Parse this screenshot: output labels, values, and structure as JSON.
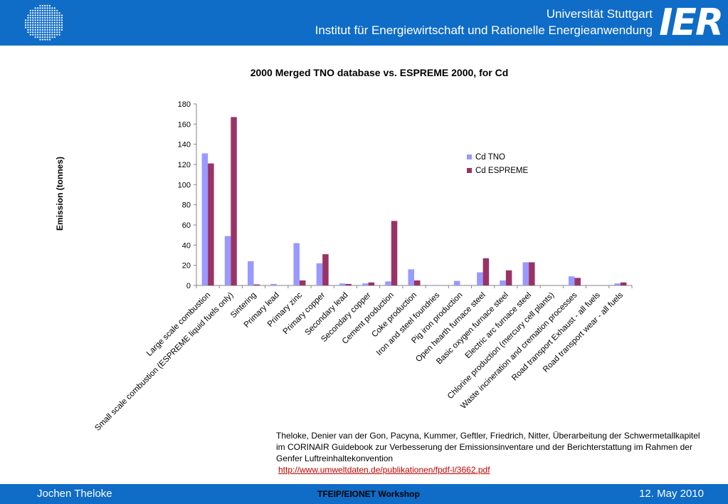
{
  "header": {
    "university": "Universität Stuttgart",
    "institute": "Institut für Energiewirtschaft und Rationelle Energieanwendung",
    "logo_text": "IER"
  },
  "chart_data": {
    "type": "bar",
    "title": "2000 Merged TNO database vs. ESPREME 2000, for Cd",
    "xlabel": "",
    "ylabel": "Emission (tonnes)",
    "ylim": [
      0,
      180
    ],
    "yticks": [
      0,
      20,
      40,
      60,
      80,
      100,
      120,
      140,
      160,
      180
    ],
    "grid": false,
    "legend_position": "right",
    "categories": [
      "Large scale combustion",
      "Small scale combustion (ESPREME liquid fuels only)",
      "Sintering",
      "Primary lead",
      "Primary zinc",
      "Primary copper",
      "Secondary lead",
      "Secondary copper",
      "Cement production",
      "Coke production",
      "Iron and steel foundries",
      "Pig iron production",
      "Open hearth furnace steel",
      "Basic oxygen furnace steel",
      "Electric arc furnace steel",
      "Chlorine production (mercury cell plants)",
      "Waste incineration and cremation processes",
      "Road transport Exhaust - all fuels",
      "Road transport wear - all fuels"
    ],
    "series": [
      {
        "name": "Cd TNO",
        "color": "#9999ff",
        "values": [
          131,
          49,
          24,
          1.5,
          42,
          22,
          2,
          2,
          4,
          16,
          0.5,
          4.5,
          13,
          5,
          23,
          0,
          9,
          0,
          2
        ]
      },
      {
        "name": "Cd ESPREME",
        "color": "#993366",
        "values": [
          121,
          167,
          1,
          0,
          5,
          31,
          1.5,
          3,
          64,
          5,
          0,
          0,
          27,
          15,
          23,
          0,
          7.5,
          0,
          3
        ]
      }
    ]
  },
  "citation": {
    "text": "Theloke, Denier van der Gon, Pacyna, Kummer, Geftler, Friedrich, Nitter, Überarbeitung der Schwermetallkapitel im CORINAIR Guidebook zur Verbesserung der Emissionsinventare und der Berichterstattung im Rahmen der Genfer Luftreinhaltekonvention",
    "link": "http://www.umweltdaten.de/publikationen/fpdf-l/3662.pdf"
  },
  "footer": {
    "author": "Jochen Theloke",
    "event": "TFEIP/EIONET Workshop",
    "date": "12. May 2010"
  }
}
